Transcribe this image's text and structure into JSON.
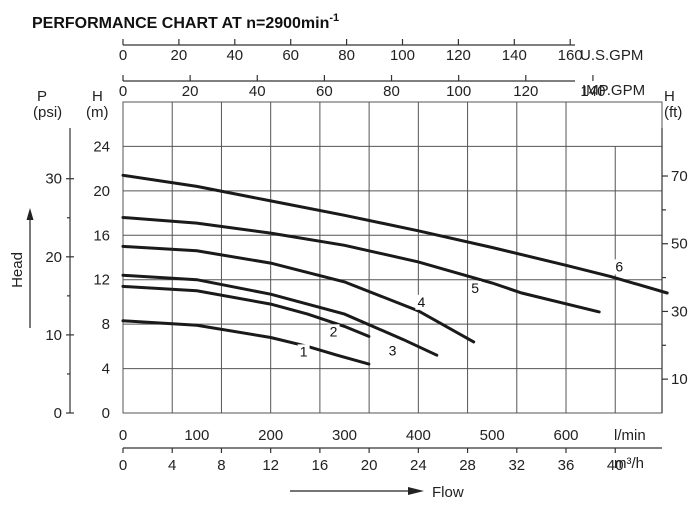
{
  "chart_data": {
    "type": "line",
    "title": "PERFORMANCE CHART AT n=2900min",
    "title_superscript": "-1",
    "xlabel": "Flow",
    "ylabel": "Head",
    "x_unit": "l/min",
    "xlim": [
      0,
      730
    ],
    "y_unit": "(m)",
    "y_symbol": "H",
    "ylim": [
      0,
      28
    ],
    "grid": true,
    "x_ticks": [
      0,
      100,
      200,
      300,
      400,
      500,
      600
    ],
    "y_ticks": [
      0,
      4,
      8,
      12,
      16,
      20,
      24
    ],
    "axis_m3h": {
      "unit": "m³/h",
      "ticks": [
        0,
        4,
        8,
        12,
        16,
        20,
        24,
        28,
        32,
        36,
        40
      ]
    },
    "axis_impgpm": {
      "unit": "IMP.GPM",
      "symbol": "H",
      "ticks": [
        0,
        20,
        40,
        60,
        80,
        100,
        120,
        140
      ]
    },
    "axis_usgpm": {
      "unit": "U.S.GPM",
      "ticks": [
        0,
        20,
        40,
        60,
        80,
        100,
        120,
        140,
        160
      ]
    },
    "axis_psi": {
      "symbol": "P",
      "unit": "(psi)",
      "ticks": [
        0,
        10,
        20,
        30
      ]
    },
    "axis_ft": {
      "symbol": "H",
      "unit": "(ft)",
      "ticks": [
        10,
        30,
        50,
        70
      ]
    },
    "series": [
      {
        "name": "1",
        "x": [
          0,
          100,
          200,
          250,
          290,
          333
        ],
        "y": [
          8.3,
          7.9,
          6.8,
          6.0,
          5.2,
          4.4
        ]
      },
      {
        "name": "2",
        "x": [
          0,
          100,
          200,
          250,
          300,
          333
        ],
        "y": [
          11.4,
          11.0,
          9.8,
          8.9,
          7.8,
          6.9
        ]
      },
      {
        "name": "3",
        "x": [
          0,
          100,
          200,
          300,
          380,
          425
        ],
        "y": [
          12.4,
          12.0,
          10.7,
          8.9,
          6.6,
          5.2
        ]
      },
      {
        "name": "4",
        "x": [
          0,
          100,
          200,
          300,
          400,
          475
        ],
        "y": [
          15.0,
          14.6,
          13.5,
          11.8,
          9.2,
          6.4
        ]
      },
      {
        "name": "5",
        "x": [
          0,
          100,
          200,
          300,
          400,
          500,
          540,
          645
        ],
        "y": [
          17.6,
          17.1,
          16.2,
          15.1,
          13.6,
          11.7,
          10.8,
          9.1
        ]
      },
      {
        "name": "6",
        "x": [
          0,
          100,
          200,
          300,
          400,
          500,
          600,
          660,
          737
        ],
        "y": [
          21.4,
          20.4,
          19.1,
          17.8,
          16.4,
          14.9,
          13.3,
          12.3,
          10.8
        ]
      }
    ]
  }
}
